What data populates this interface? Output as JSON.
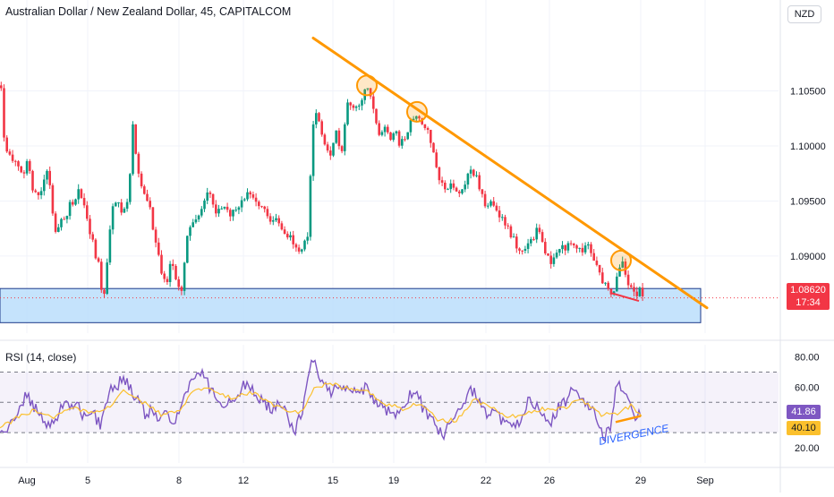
{
  "header": {
    "title": "Australian Dollar / New Zealand Dollar, 45, CAPITALCOM",
    "currency_button": "NZD"
  },
  "price_tag": {
    "price": "1.08620",
    "countdown": "17:34",
    "color": "#f23645"
  },
  "rsi_panel": {
    "label": "RSI (14, close)",
    "value_rsi": "41.86",
    "value_ma": "40.10",
    "rsi_color": "#7e57c2",
    "ma_color": "#fbc02d"
  },
  "annotations": {
    "divergence_text": "DIVERGENCE"
  },
  "colors": {
    "up": "#089981",
    "down": "#f23645",
    "trendline": "#ff9800",
    "support_zone": "#bbdefb",
    "support_border": "#1e3a8a"
  },
  "chart_data": [
    {
      "type": "candlestick",
      "title": "Australian Dollar / New Zealand Dollar, 45, CAPITALCOM",
      "price_axis_ticks": [
        "1.10500",
        "1.10000",
        "1.09500",
        "1.09000"
      ],
      "ylim": [
        1.083,
        1.11
      ],
      "time_axis_ticks": [
        "Aug",
        "5",
        "8",
        "12",
        "15",
        "19",
        "22",
        "26",
        "29",
        "Sep"
      ],
      "last_price": 1.0862,
      "series_anchor_points": [
        [
          0,
          1.1055
        ],
        [
          4,
          1.0995
        ],
        [
          12,
          1.099
        ],
        [
          18,
          1.0985
        ],
        [
          24,
          1.097
        ],
        [
          30,
          1.099
        ],
        [
          36,
          1.0955
        ],
        [
          44,
          1.096
        ],
        [
          52,
          1.098
        ],
        [
          60,
          1.0925
        ],
        [
          70,
          1.0935
        ],
        [
          80,
          1.095
        ],
        [
          88,
          1.096
        ],
        [
          96,
          1.0935
        ],
        [
          104,
          1.0905
        ],
        [
          110,
          1.089
        ],
        [
          114,
          1.0848
        ],
        [
          118,
          1.0895
        ],
        [
          124,
          1.094
        ],
        [
          130,
          1.0955
        ],
        [
          136,
          1.0935
        ],
        [
          142,
          1.095
        ],
        [
          147,
          1.102
        ],
        [
          152,
          1.0975
        ],
        [
          158,
          1.096
        ],
        [
          166,
          1.0945
        ],
        [
          172,
          1.0915
        ],
        [
          178,
          1.089
        ],
        [
          184,
          1.0875
        ],
        [
          190,
          1.0895
        ],
        [
          196,
          1.088
        ],
        [
          202,
          1.0868
        ],
        [
          208,
          1.0915
        ],
        [
          216,
          1.0935
        ],
        [
          224,
          1.094
        ],
        [
          232,
          1.0965
        ],
        [
          240,
          1.0935
        ],
        [
          248,
          1.095
        ],
        [
          256,
          1.094
        ],
        [
          264,
          1.0945
        ],
        [
          272,
          1.0955
        ],
        [
          280,
          1.0955
        ],
        [
          290,
          1.0945
        ],
        [
          300,
          1.0935
        ],
        [
          310,
          1.093
        ],
        [
          320,
          1.092
        ],
        [
          330,
          1.0907
        ],
        [
          338,
          1.091
        ],
        [
          344,
          1.0925
        ],
        [
          346,
          1.0985
        ],
        [
          350,
          1.1035
        ],
        [
          356,
          1.102
        ],
        [
          362,
          1.1
        ],
        [
          368,
          1.099
        ],
        [
          374,
          1.1015
        ],
        [
          380,
          1.0985
        ],
        [
          386,
          1.1035
        ],
        [
          392,
          1.104
        ],
        [
          398,
          1.103
        ],
        [
          404,
          1.1045
        ],
        [
          410,
          1.1055
        ],
        [
          416,
          1.103
        ],
        [
          422,
          1.101
        ],
        [
          428,
          1.102
        ],
        [
          434,
          1.1005
        ],
        [
          440,
          1.1015
        ],
        [
          446,
          1.1
        ],
        [
          452,
          1.101
        ],
        [
          458,
          1.1025
        ],
        [
          464,
          1.103
        ],
        [
          470,
          1.102
        ],
        [
          476,
          1.1015
        ],
        [
          482,
          1.0995
        ],
        [
          488,
          1.0975
        ],
        [
          494,
          1.0965
        ],
        [
          500,
          1.096
        ],
        [
          506,
          1.0965
        ],
        [
          512,
          1.0955
        ],
        [
          518,
          1.0965
        ],
        [
          524,
          1.098
        ],
        [
          530,
          1.0975
        ],
        [
          536,
          1.096
        ],
        [
          542,
          1.094
        ],
        [
          548,
          1.095
        ],
        [
          556,
          1.0935
        ],
        [
          564,
          1.093
        ],
        [
          572,
          1.0915
        ],
        [
          580,
          1.0905
        ],
        [
          588,
          1.091
        ],
        [
          596,
          1.092
        ],
        [
          602,
          1.0925
        ],
        [
          608,
          1.0905
        ],
        [
          614,
          1.0895
        ],
        [
          620,
          1.09
        ],
        [
          626,
          1.0905
        ],
        [
          632,
          1.091
        ],
        [
          638,
          1.0915
        ],
        [
          644,
          1.091
        ],
        [
          650,
          1.0905
        ],
        [
          656,
          1.091
        ],
        [
          662,
          1.0895
        ],
        [
          668,
          1.0885
        ],
        [
          674,
          1.0875
        ],
        [
          680,
          1.0866
        ],
        [
          686,
          1.087
        ],
        [
          690,
          1.0888
        ],
        [
          694,
          1.0898
        ],
        [
          698,
          1.0882
        ],
        [
          703,
          1.0872
        ],
        [
          708,
          1.0865
        ],
        [
          713,
          1.087
        ],
        [
          717,
          1.0862
        ]
      ],
      "price_trendline": {
        "from": [
          350,
          1.1098
        ],
        "to": [
          790,
          1.0853
        ]
      },
      "touch_circles": [
        [
          410,
          1.1055
        ],
        [
          466,
          1.1031
        ],
        [
          694,
          1.0896
        ]
      ],
      "support_zone": {
        "top": 1.08705,
        "bottom": 1.08395,
        "x_end": 783
      }
    },
    {
      "type": "line",
      "title": "RSI (14, close)",
      "ylim": [
        10,
        88
      ],
      "axis_ticks": [
        "80.00",
        "60.00",
        "20.00"
      ],
      "bands": [
        30,
        70
      ],
      "midline": 50,
      "series": [
        {
          "name": "RSI (14, close)",
          "color": "#7e57c2"
        },
        {
          "name": "MA",
          "color": "#fbc02d"
        }
      ],
      "rsi_anchor_points": [
        [
          0,
          30
        ],
        [
          10,
          33
        ],
        [
          20,
          45
        ],
        [
          30,
          55
        ],
        [
          40,
          45
        ],
        [
          48,
          38
        ],
        [
          56,
          32
        ],
        [
          64,
          42
        ],
        [
          72,
          50
        ],
        [
          80,
          48
        ],
        [
          88,
          47
        ],
        [
          96,
          38
        ],
        [
          104,
          43
        ],
        [
          112,
          35
        ],
        [
          118,
          48
        ],
        [
          124,
          62
        ],
        [
          130,
          60
        ],
        [
          138,
          67
        ],
        [
          146,
          58
        ],
        [
          154,
          52
        ],
        [
          162,
          42
        ],
        [
          170,
          45
        ],
        [
          178,
          38
        ],
        [
          186,
          42
        ],
        [
          194,
          34
        ],
        [
          202,
          50
        ],
        [
          210,
          60
        ],
        [
          218,
          66
        ],
        [
          226,
          71
        ],
        [
          234,
          60
        ],
        [
          242,
          55
        ],
        [
          250,
          46
        ],
        [
          258,
          52
        ],
        [
          266,
          55
        ],
        [
          274,
          62
        ],
        [
          282,
          58
        ],
        [
          290,
          52
        ],
        [
          298,
          48
        ],
        [
          306,
          45
        ],
        [
          314,
          50
        ],
        [
          322,
          38
        ],
        [
          330,
          32
        ],
        [
          338,
          45
        ],
        [
          344,
          64
        ],
        [
          348,
          80
        ],
        [
          352,
          76
        ],
        [
          358,
          63
        ],
        [
          364,
          60
        ],
        [
          370,
          57
        ],
        [
          378,
          62
        ],
        [
          386,
          60
        ],
        [
          394,
          58
        ],
        [
          402,
          54
        ],
        [
          410,
          62
        ],
        [
          418,
          50
        ],
        [
          426,
          47
        ],
        [
          434,
          44
        ],
        [
          442,
          42
        ],
        [
          450,
          49
        ],
        [
          458,
          54
        ],
        [
          466,
          57
        ],
        [
          474,
          44
        ],
        [
          482,
          40
        ],
        [
          490,
          32
        ],
        [
          496,
          28
        ],
        [
          504,
          38
        ],
        [
          512,
          42
        ],
        [
          520,
          52
        ],
        [
          528,
          58
        ],
        [
          536,
          52
        ],
        [
          544,
          42
        ],
        [
          552,
          44
        ],
        [
          560,
          38
        ],
        [
          568,
          36
        ],
        [
          576,
          32
        ],
        [
          584,
          42
        ],
        [
          592,
          52
        ],
        [
          600,
          48
        ],
        [
          608,
          42
        ],
        [
          616,
          38
        ],
        [
          624,
          46
        ],
        [
          632,
          50
        ],
        [
          640,
          60
        ],
        [
          648,
          52
        ],
        [
          656,
          48
        ],
        [
          662,
          45
        ],
        [
          670,
          32
        ],
        [
          676,
          28
        ],
        [
          682,
          33
        ],
        [
          688,
          58
        ],
        [
          694,
          61
        ],
        [
          700,
          52
        ],
        [
          706,
          44
        ],
        [
          712,
          40
        ],
        [
          717,
          42
        ]
      ],
      "ma_anchor_points": [
        [
          0,
          33
        ],
        [
          20,
          40
        ],
        [
          40,
          45
        ],
        [
          60,
          40
        ],
        [
          80,
          46
        ],
        [
          100,
          44
        ],
        [
          120,
          46
        ],
        [
          140,
          58
        ],
        [
          160,
          50
        ],
        [
          180,
          42
        ],
        [
          200,
          44
        ],
        [
          220,
          60
        ],
        [
          240,
          58
        ],
        [
          260,
          52
        ],
        [
          280,
          57
        ],
        [
          300,
          50
        ],
        [
          320,
          44
        ],
        [
          340,
          44
        ],
        [
          350,
          60
        ],
        [
          370,
          62
        ],
        [
          390,
          59
        ],
        [
          410,
          57
        ],
        [
          430,
          49
        ],
        [
          450,
          46
        ],
        [
          470,
          50
        ],
        [
          490,
          38
        ],
        [
          510,
          38
        ],
        [
          530,
          52
        ],
        [
          550,
          46
        ],
        [
          570,
          40
        ],
        [
          590,
          44
        ],
        [
          610,
          46
        ],
        [
          630,
          46
        ],
        [
          650,
          52
        ],
        [
          670,
          42
        ],
        [
          690,
          42
        ],
        [
          705,
          48
        ],
        [
          717,
          42
        ]
      ],
      "divergence_line": {
        "from": [
          688,
          37
        ],
        "to": [
          716,
          41
        ]
      }
    }
  ]
}
